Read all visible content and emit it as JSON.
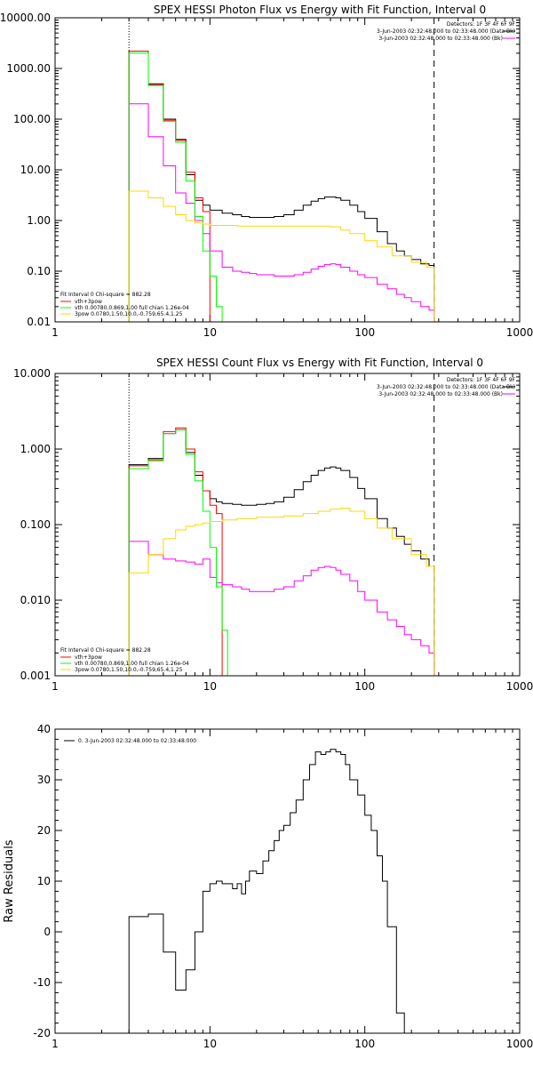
{
  "chart_data": [
    {
      "type": "line",
      "title": "SPEX HESSI Photon Flux vs Energy with Fit Function, Interval 0",
      "xlabel": "",
      "ylabel": "",
      "x_scale": "log",
      "y_scale": "log",
      "xlim": [
        1,
        1000
      ],
      "ylim": [
        0.01,
        10000
      ],
      "x_ticks": [
        "1",
        "10",
        "100",
        "1000"
      ],
      "y_ticks": [
        "0.01",
        "0.10",
        "1.00",
        "10.00",
        "100.00",
        "1000.00",
        "10000.00"
      ],
      "vlines": [
        3,
        280
      ],
      "legend_top_right": [
        "Detectors: 1F 3F 4F 6F 9F",
        "3-Jun-2003 02:32:48.000 to 02:33:48.000 (Data-Bk)",
        "3-Jun-2003 02:32:48.000 to 02:33:48.000 (Bk)"
      ],
      "legend_bottom_left": {
        "header": "Fit Interval 0   Chi-square = 882.28",
        "entries": [
          "vth+3pow",
          "vth 0.00780,0.869,1.00  full chian 1.26e-04",
          "3pow 0.0780,1.50,10.0,-0.759,65.4,1.25"
        ]
      },
      "series": [
        {
          "name": "Data-Bk",
          "color": "#000000",
          "x": [
            3,
            4,
            5,
            6,
            7,
            8,
            9,
            10,
            12,
            14,
            16,
            18,
            20,
            23,
            26,
            30,
            35,
            40,
            45,
            50,
            55,
            60,
            65,
            70,
            80,
            90,
            100,
            120,
            140,
            160,
            180,
            200,
            230,
            260,
            280
          ],
          "y": [
            2200,
            500,
            100,
            40,
            8,
            2.5,
            2,
            1.6,
            1.4,
            1.3,
            1.2,
            1.15,
            1.15,
            1.15,
            1.2,
            1.3,
            1.6,
            2,
            2.4,
            2.7,
            2.9,
            2.9,
            2.8,
            2.5,
            2,
            1.5,
            1.1,
            0.6,
            0.35,
            0.25,
            0.2,
            0.17,
            0.14,
            0.13,
            0.13
          ]
        },
        {
          "name": "",
          "color": "#ff0000",
          "x": [
            3,
            4,
            5,
            6,
            7,
            8,
            9,
            10
          ],
          "y": [
            2200,
            480,
            95,
            38,
            9,
            2.8,
            1.5,
            1.1
          ]
        },
        {
          "name": "Bk",
          "color": "#ff00ff",
          "x": [
            3,
            4,
            5,
            6,
            7,
            8,
            9,
            10,
            12,
            14,
            16,
            18,
            20,
            23,
            26,
            30,
            35,
            40,
            45,
            50,
            55,
            60,
            65,
            70,
            80,
            90,
            100,
            120,
            140,
            160,
            180,
            200,
            230,
            260,
            280
          ],
          "y": [
            200,
            45,
            12,
            3.5,
            2.2,
            1,
            0.55,
            0.25,
            0.12,
            0.1,
            0.095,
            0.09,
            0.085,
            0.085,
            0.08,
            0.08,
            0.085,
            0.095,
            0.11,
            0.125,
            0.135,
            0.14,
            0.135,
            0.12,
            0.1,
            0.085,
            0.075,
            0.055,
            0.045,
            0.035,
            0.03,
            0.025,
            0.02,
            0.017,
            0.015
          ]
        },
        {
          "name": "vth",
          "color": "#00ff00",
          "x": [
            3,
            4,
            5,
            6,
            7,
            8,
            9,
            10,
            11,
            12
          ],
          "y": [
            2000,
            460,
            90,
            35,
            6,
            1.2,
            0.25,
            0.08,
            0.02,
            0.01
          ]
        },
        {
          "name": "3pow",
          "color": "#ffd700",
          "x": [
            3,
            4,
            5,
            6,
            7,
            8,
            9,
            10,
            15,
            20,
            30,
            40,
            50,
            60,
            70,
            80,
            100,
            120,
            150,
            200,
            250,
            280
          ],
          "y": [
            3.8,
            2.8,
            1.9,
            1.3,
            1,
            0.9,
            0.85,
            0.8,
            0.78,
            0.78,
            0.78,
            0.78,
            0.78,
            0.75,
            0.65,
            0.55,
            0.4,
            0.3,
            0.2,
            0.15,
            0.12,
            0.11
          ]
        }
      ]
    },
    {
      "type": "line",
      "title": "SPEX HESSI Count Flux vs Energy with Fit Function, Interval 0",
      "xlabel": "",
      "ylabel": "",
      "x_scale": "log",
      "y_scale": "log",
      "xlim": [
        1,
        1000
      ],
      "ylim": [
        0.001,
        10
      ],
      "x_ticks": [
        "1",
        "10",
        "100",
        "1000"
      ],
      "y_ticks": [
        "0.001",
        "0.010",
        "0.100",
        "1.000",
        "10.000"
      ],
      "vlines": [
        3,
        280
      ],
      "legend_top_right": [
        "Detectors: 1F 3F 4F 6F 9F",
        "3-Jun-2003 02:32:48.000 to 02:33:48.000 (Data-Bk)",
        "3-Jun-2003 02:32:48.000 to 02:33:48.000 (Bk)"
      ],
      "legend_bottom_left": {
        "header": "Fit Interval 0   Chi-square = 882.28",
        "entries": [
          "vth+3pow",
          "vth 0.00780,0.869,1.00  full chian 1.26e-04",
          "3pow 0.0780,1.50,10.0,-0.759,65.4,1.25"
        ]
      },
      "series": [
        {
          "name": "Data-Bk",
          "color": "#000000",
          "x": [
            3,
            4,
            5,
            6,
            7,
            8,
            9,
            10,
            11,
            12,
            14,
            16,
            18,
            20,
            23,
            26,
            30,
            35,
            40,
            45,
            50,
            55,
            60,
            65,
            70,
            80,
            90,
            100,
            120,
            140,
            160,
            180,
            200,
            230,
            260,
            280
          ],
          "y": [
            0.62,
            0.75,
            1.6,
            1.8,
            0.9,
            0.45,
            0.28,
            0.22,
            0.2,
            0.19,
            0.185,
            0.18,
            0.18,
            0.185,
            0.19,
            0.2,
            0.23,
            0.29,
            0.37,
            0.45,
            0.52,
            0.56,
            0.58,
            0.56,
            0.52,
            0.42,
            0.3,
            0.22,
            0.12,
            0.09,
            0.07,
            0.055,
            0.045,
            0.035,
            0.028,
            0.025
          ]
        },
        {
          "name": "",
          "color": "#ff0000",
          "x": [
            3,
            4,
            5,
            6,
            7,
            8,
            9,
            10,
            11,
            12
          ],
          "y": [
            0.6,
            0.72,
            1.7,
            1.9,
            1,
            0.5,
            0.28,
            0.18,
            0.14,
            0.12
          ]
        },
        {
          "name": "Bk",
          "color": "#ff00ff",
          "x": [
            3,
            4,
            5,
            6,
            7,
            8,
            9,
            10,
            11,
            12,
            14,
            16,
            18,
            20,
            23,
            26,
            30,
            35,
            40,
            45,
            50,
            55,
            60,
            65,
            70,
            80,
            90,
            100,
            120,
            140,
            160,
            180,
            200,
            230,
            260,
            280
          ],
          "y": [
            0.06,
            0.04,
            0.035,
            0.033,
            0.032,
            0.03,
            0.035,
            0.02,
            0.017,
            0.016,
            0.015,
            0.014,
            0.013,
            0.013,
            0.013,
            0.014,
            0.015,
            0.018,
            0.021,
            0.025,
            0.027,
            0.028,
            0.027,
            0.025,
            0.022,
            0.018,
            0.013,
            0.01,
            0.007,
            0.0055,
            0.0045,
            0.0035,
            0.003,
            0.0025,
            0.002,
            0.0018
          ]
        },
        {
          "name": "vth",
          "color": "#00ff00",
          "x": [
            3,
            4,
            5,
            6,
            7,
            8,
            9,
            10,
            11,
            12,
            13
          ],
          "y": [
            0.55,
            0.7,
            1.6,
            1.8,
            0.85,
            0.38,
            0.15,
            0.05,
            0.015,
            0.004,
            0.001
          ]
        },
        {
          "name": "3pow",
          "color": "#ffd700",
          "x": [
            3,
            4,
            5,
            6,
            7,
            8,
            9,
            10,
            12,
            15,
            20,
            30,
            40,
            50,
            60,
            70,
            80,
            100,
            120,
            150,
            200,
            250,
            280
          ],
          "y": [
            0.023,
            0.04,
            0.065,
            0.085,
            0.095,
            0.1,
            0.105,
            0.11,
            0.115,
            0.12,
            0.125,
            0.13,
            0.14,
            0.15,
            0.16,
            0.165,
            0.15,
            0.12,
            0.09,
            0.065,
            0.04,
            0.028,
            0.024
          ]
        }
      ]
    },
    {
      "type": "line",
      "title": "",
      "xlabel": "",
      "ylabel": "Raw Residuals",
      "x_scale": "log",
      "y_scale": "linear",
      "xlim": [
        1,
        1000
      ],
      "ylim": [
        -20,
        40
      ],
      "x_ticks": [
        "1",
        "10",
        "100",
        "1000"
      ],
      "y_ticks": [
        "-20",
        "-10",
        "0",
        "10",
        "20",
        "30",
        "40"
      ],
      "legend_top_left": "0.  3-Jun-2003 02:32:48.000 to 02:33:48.000",
      "series": [
        {
          "name": "0.  3-Jun-2003 02:32:48.000 to 02:33:48.000",
          "color": "#000000",
          "edges": [
            3,
            4,
            5,
            6,
            7,
            8,
            9,
            10,
            11,
            12,
            13,
            14,
            15,
            16,
            17,
            18,
            20,
            22,
            24,
            26,
            28,
            30,
            33,
            36,
            40,
            44,
            48,
            52,
            56,
            60,
            65,
            70,
            75,
            80,
            90,
            100,
            110,
            120,
            130,
            140,
            160,
            180,
            200,
            230,
            260,
            280
          ],
          "values": [
            3,
            3.5,
            -4,
            -11.5,
            -7.5,
            0,
            8,
            9.5,
            10,
            9.5,
            9.5,
            8.5,
            9.5,
            7.5,
            10,
            12,
            11.5,
            14,
            16,
            18,
            20,
            21,
            23.5,
            26,
            30,
            33,
            35.5,
            35,
            35.5,
            36,
            35.5,
            35,
            33,
            30,
            27,
            23,
            20,
            15,
            10,
            1,
            -16,
            -20,
            -20,
            -20,
            -20
          ]
        }
      ]
    }
  ]
}
